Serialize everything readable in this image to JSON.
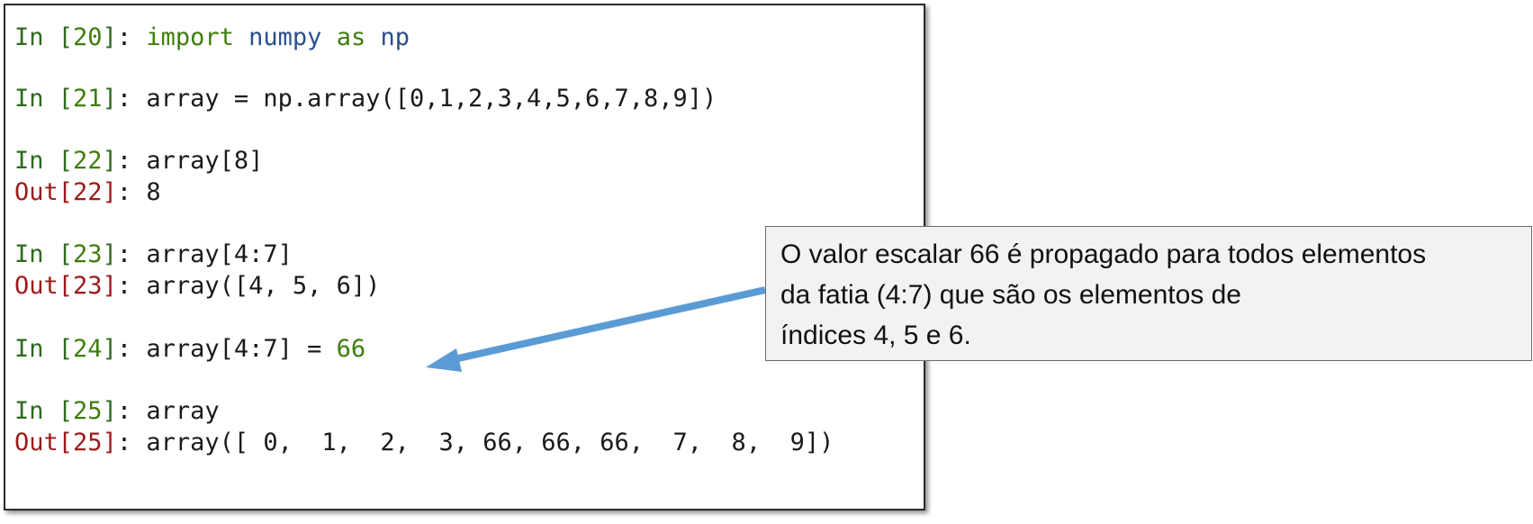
{
  "console": {
    "lines": [
      {
        "prefix": "In",
        "num": "20",
        "sep": ": ",
        "code_parts": [
          "import",
          " ",
          "numpy",
          " ",
          "as",
          " ",
          "np"
        ]
      },
      {
        "prefix": "In",
        "num": "21",
        "sep": ": ",
        "code": "array = np.array([0,1,2,3,4,5,6,7,8,9])"
      },
      {
        "prefix": "In",
        "num": "22",
        "sep": ": ",
        "code": "array[8]"
      },
      {
        "prefix": "Out",
        "num": "22",
        "sep": ": ",
        "code": "8"
      },
      {
        "prefix": "In",
        "num": "23",
        "sep": ": ",
        "code": "array[4:7]"
      },
      {
        "prefix": "Out",
        "num": "23",
        "sep": ": ",
        "code": "array([4, 5, 6])"
      },
      {
        "prefix": "In",
        "num": "24",
        "sep": ": ",
        "code": "array[4:7] = ",
        "literal": "66"
      },
      {
        "prefix": "In",
        "num": "25",
        "sep": ": ",
        "code": "array"
      },
      {
        "prefix": "Out",
        "num": "25",
        "sep": ": ",
        "code": "array([ 0,  1,  2,  3, 66, 66, 66,  7,  8,  9])"
      }
    ]
  },
  "callout": {
    "line1": "O valor escalar 66 é propagado para todos elementos",
    "line2": "da fatia (4:7) que são os elementos de",
    "line3": "índices 4, 5 e 6."
  },
  "colors": {
    "arrow": "#5b9bd5",
    "prompt_in": "#2e6a1e",
    "prompt_out": "#9c1a1a"
  }
}
